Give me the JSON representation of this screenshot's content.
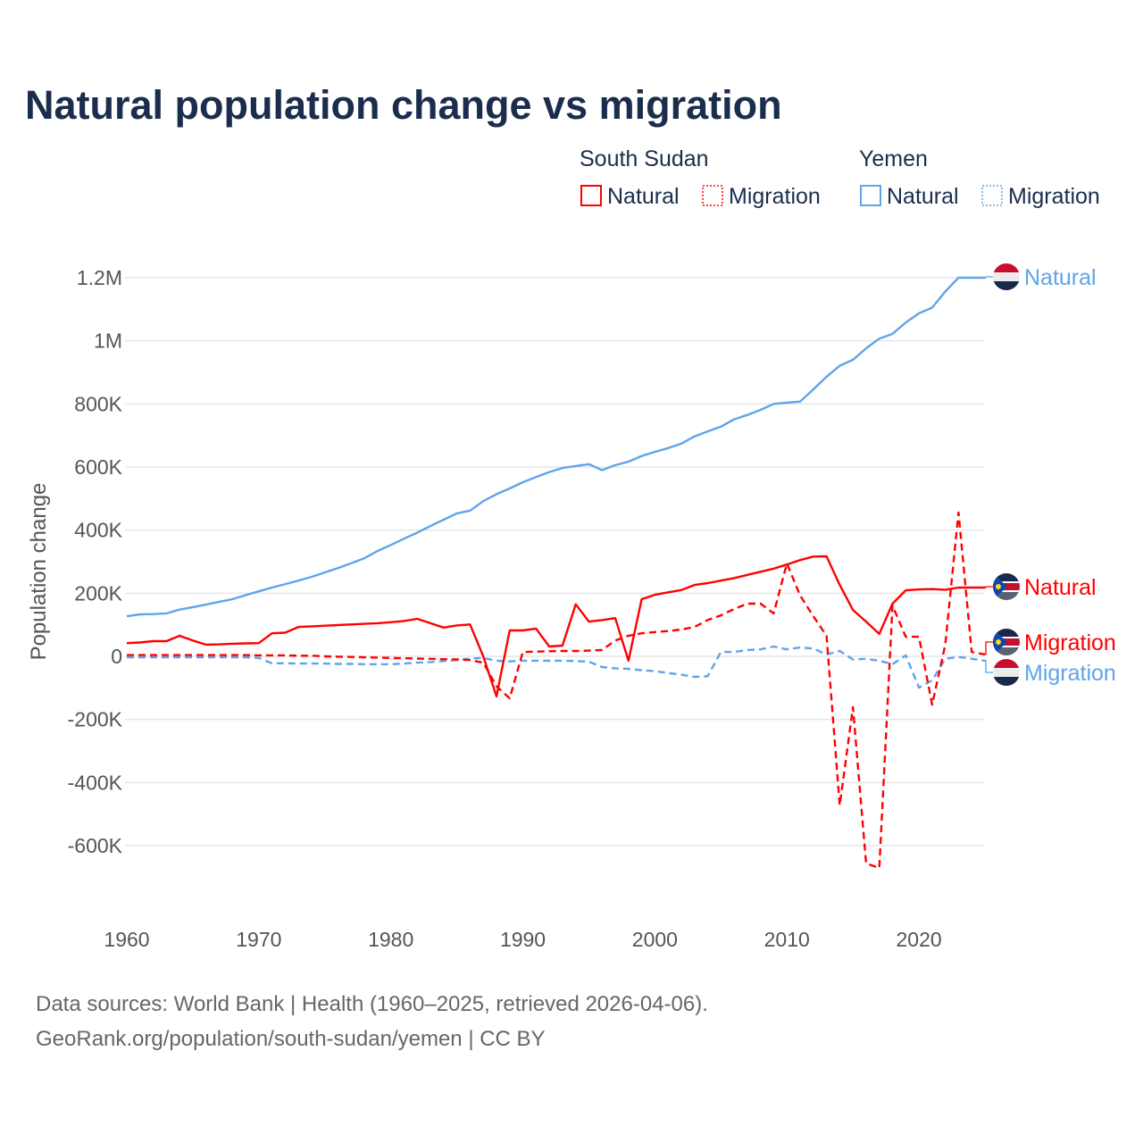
{
  "chart_data": {
    "type": "line",
    "title": "Natural population change vs migration",
    "xlabel": "",
    "ylabel": "Population change",
    "xlim": [
      1960,
      2025
    ],
    "ylim": [
      -700000,
      1250000
    ],
    "x_ticks": [
      1960,
      1970,
      1980,
      1990,
      2000,
      2010,
      2020
    ],
    "x_tick_labels": [
      "1960",
      "1970",
      "1980",
      "1990",
      "2000",
      "2010",
      "2020"
    ],
    "y_ticks": [
      -600000,
      -400000,
      -200000,
      0,
      200000,
      400000,
      600000,
      800000,
      1000000,
      1200000
    ],
    "y_tick_labels": [
      "-600K",
      "-400K",
      "-200K",
      "0",
      "200K",
      "400K",
      "600K",
      "800K",
      "1M",
      "1.2M"
    ],
    "grid": true,
    "legend": {
      "placement": "top-right",
      "groups": [
        {
          "country": "South Sudan",
          "items": [
            "Natural",
            "Migration"
          ]
        },
        {
          "country": "Yemen",
          "items": [
            "Natural",
            "Migration"
          ]
        }
      ]
    },
    "x": [
      1960,
      1961,
      1962,
      1963,
      1964,
      1965,
      1966,
      1967,
      1968,
      1969,
      1970,
      1971,
      1972,
      1973,
      1974,
      1975,
      1976,
      1977,
      1978,
      1979,
      1980,
      1981,
      1982,
      1983,
      1984,
      1985,
      1986,
      1987,
      1988,
      1989,
      1990,
      1991,
      1992,
      1993,
      1994,
      1995,
      1996,
      1997,
      1998,
      1999,
      2000,
      2001,
      2002,
      2003,
      2004,
      2005,
      2006,
      2007,
      2008,
      2009,
      2010,
      2011,
      2012,
      2013,
      2014,
      2015,
      2016,
      2017,
      2018,
      2019,
      2020,
      2021,
      2022,
      2023,
      2024,
      2025
    ],
    "series": [
      {
        "name": "Natural",
        "country": "South Sudan",
        "color": "#ff0000",
        "dash": "solid",
        "end_label": "Natural",
        "values": [
          42000,
          44000,
          48000,
          48000,
          65000,
          50000,
          37000,
          38000,
          40000,
          41000,
          42000,
          73000,
          75000,
          93000,
          95000,
          97000,
          99000,
          101000,
          103000,
          105000,
          108000,
          112000,
          119000,
          105000,
          91000,
          98000,
          101000,
          0,
          -127000,
          82000,
          82000,
          88000,
          31000,
          34000,
          165000,
          110000,
          115000,
          121000,
          -14000,
          181000,
          195000,
          203000,
          210000,
          226000,
          232000,
          240000,
          248000,
          258000,
          268000,
          278000,
          291000,
          305000,
          316000,
          317000,
          226000,
          147000,
          110000,
          71000,
          167000,
          209000,
          212000,
          213000,
          211000,
          218000,
          218000,
          218000
        ]
      },
      {
        "name": "Migration",
        "country": "South Sudan",
        "color": "#ff0000",
        "dash": "dashed",
        "end_label": "Migration",
        "values": [
          4000,
          4000,
          4000,
          4000,
          4000,
          4000,
          4000,
          4000,
          4000,
          4000,
          3000,
          3000,
          3000,
          2000,
          2000,
          0,
          -1000,
          -2000,
          -3000,
          -4000,
          -5000,
          -6000,
          -7000,
          -8000,
          -9000,
          -10000,
          -12000,
          -20000,
          -95000,
          -133000,
          14000,
          15000,
          16000,
          17000,
          17000,
          18000,
          20000,
          50000,
          65000,
          73000,
          77000,
          80000,
          85000,
          93000,
          115000,
          130000,
          150000,
          167000,
          167000,
          136000,
          294000,
          193000,
          127000,
          65000,
          -472000,
          -161000,
          -656000,
          -671000,
          161000,
          62000,
          62000,
          -153000,
          37000,
          456000,
          14000,
          6000
        ]
      },
      {
        "name": "Natural",
        "country": "Yemen",
        "color": "#5fa4ea",
        "dash": "solid",
        "end_label": "Natural",
        "values": [
          127000,
          133000,
          134000,
          136000,
          148000,
          156000,
          164000,
          173000,
          181000,
          194000,
          206000,
          218000,
          229000,
          240000,
          252000,
          266000,
          280000,
          295000,
          311000,
          334000,
          353000,
          373000,
          392000,
          413000,
          433000,
          453000,
          462000,
          492000,
          514000,
          532000,
          552000,
          568000,
          584000,
          597000,
          603000,
          609000,
          590000,
          606000,
          617000,
          635000,
          648000,
          660000,
          674000,
          697000,
          713000,
          728000,
          751000,
          765000,
          781000,
          800000,
          804000,
          807000,
          846000,
          886000,
          921000,
          940000,
          976000,
          1007000,
          1022000,
          1058000,
          1087000,
          1105000,
          1156000,
          1200000,
          1200000,
          1200000
        ]
      },
      {
        "name": "Migration",
        "country": "Yemen",
        "color": "#5fa4ea",
        "dash": "dashed",
        "end_label": "Migration",
        "values": [
          -3000,
          -3000,
          -3000,
          -3000,
          -3000,
          -3000,
          -3000,
          -3000,
          -3000,
          -3000,
          -5000,
          -22000,
          -22000,
          -23000,
          -23000,
          -23000,
          -24000,
          -24000,
          -25000,
          -25000,
          -25000,
          -23000,
          -20000,
          -18000,
          -15000,
          -12000,
          -7000,
          -5000,
          -14000,
          -16000,
          -14000,
          -14000,
          -14000,
          -14000,
          -15000,
          -17000,
          -34000,
          -38000,
          -40000,
          -44000,
          -47000,
          -53000,
          -58000,
          -65000,
          -63000,
          14000,
          14000,
          20000,
          22000,
          31000,
          22000,
          28000,
          25000,
          6000,
          17000,
          -10000,
          -8000,
          -14000,
          -25000,
          3000,
          -99000,
          -76000,
          -8000,
          -2000,
          -8000,
          -14000
        ]
      }
    ]
  },
  "source_lines": [
    "Data sources: World Bank | Health (1960–2025, retrieved 2026-04-06).",
    "GeoRank.org/population/south-sudan/yemen | CC BY"
  ]
}
